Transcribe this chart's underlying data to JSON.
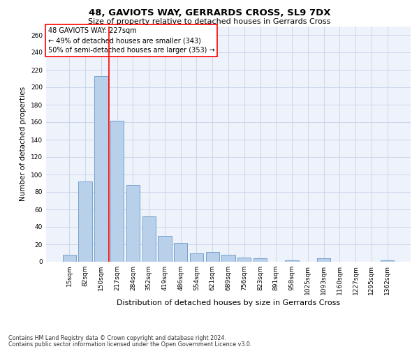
{
  "title": "48, GAVIOTS WAY, GERRARDS CROSS, SL9 7DX",
  "subtitle": "Size of property relative to detached houses in Gerrards Cross",
  "xlabel": "Distribution of detached houses by size in Gerrards Cross",
  "ylabel": "Number of detached properties",
  "footnote1": "Contains HM Land Registry data © Crown copyright and database right 2024.",
  "footnote2": "Contains public sector information licensed under the Open Government Licence v3.0.",
  "bar_labels": [
    "15sqm",
    "82sqm",
    "150sqm",
    "217sqm",
    "284sqm",
    "352sqm",
    "419sqm",
    "486sqm",
    "554sqm",
    "621sqm",
    "689sqm",
    "756sqm",
    "823sqm",
    "891sqm",
    "958sqm",
    "1025sqm",
    "1093sqm",
    "1160sqm",
    "1227sqm",
    "1295sqm",
    "1362sqm"
  ],
  "bar_values": [
    8,
    92,
    213,
    162,
    88,
    52,
    30,
    22,
    10,
    11,
    8,
    5,
    4,
    0,
    2,
    0,
    4,
    0,
    0,
    0,
    2
  ],
  "bar_color": "#b8d0ea",
  "bar_edgecolor": "#6898c8",
  "vline_x": 2.5,
  "vline_color": "red",
  "ylim": [
    0,
    270
  ],
  "yticks": [
    0,
    20,
    40,
    60,
    80,
    100,
    120,
    140,
    160,
    180,
    200,
    220,
    240,
    260
  ],
  "annotation_text": "48 GAVIOTS WAY: 227sqm\n← 49% of detached houses are smaller (343)\n50% of semi-detached houses are larger (353) →",
  "background_color": "#edf2fb",
  "grid_color": "#c5d3e8",
  "title_fontsize": 9.5,
  "subtitle_fontsize": 8,
  "ylabel_fontsize": 7.5,
  "xlabel_fontsize": 8,
  "tick_fontsize": 6.5,
  "annot_fontsize": 7,
  "footnote_fontsize": 5.8
}
